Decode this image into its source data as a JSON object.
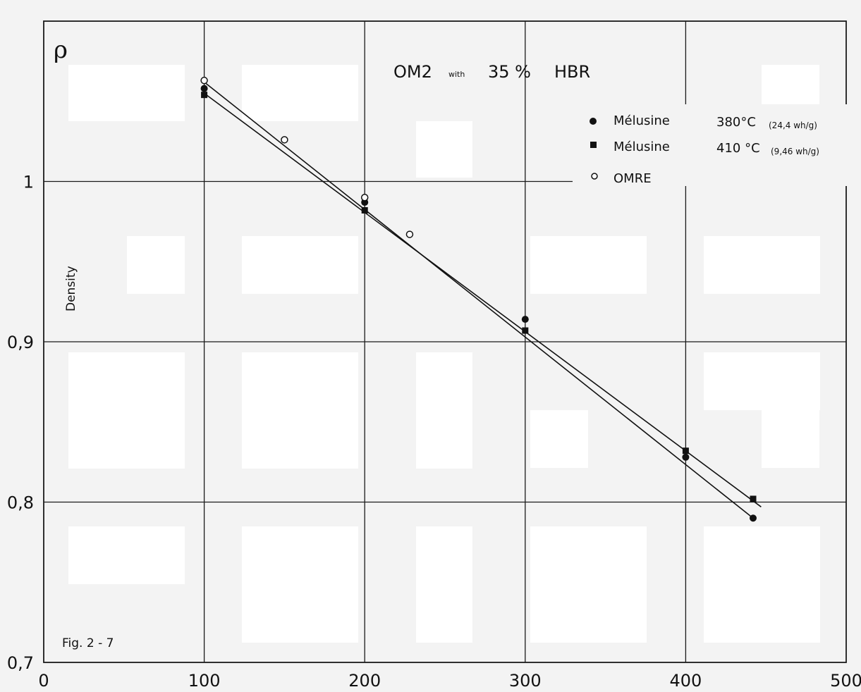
{
  "chart_data": {
    "type": "scatter",
    "title": {
      "main": "OM2",
      "small": "with",
      "pct": "35 %",
      "suffix": "HBR"
    },
    "xlabel": "",
    "ylabel": "Density",
    "y_symbol": "ρ",
    "figure_label": "Fig. 2 - 7",
    "xlim": [
      0,
      500
    ],
    "ylim": [
      0.7,
      1.1
    ],
    "x_ticks": [
      0,
      100,
      200,
      300,
      400,
      500
    ],
    "x_tick_labels": [
      "0",
      "100",
      "200",
      "300",
      "400",
      "500"
    ],
    "y_ticks": [
      0.7,
      0.8,
      0.9,
      1.0
    ],
    "y_tick_labels": [
      "0,7",
      "0,8",
      "0,9",
      "1"
    ],
    "grid": true,
    "legend_position": "top-right",
    "series": [
      {
        "name": "Mélusine",
        "note": "380°C",
        "note_small": "(24,4 wh/g)",
        "marker": "filled-circle",
        "points": [
          [
            100,
            1.058
          ],
          [
            200,
            0.987
          ],
          [
            300,
            0.914
          ],
          [
            400,
            0.828
          ],
          [
            442,
            0.79
          ]
        ]
      },
      {
        "name": "Mélusine",
        "note": "410 °C",
        "note_small": "(9,46 wh/g)",
        "marker": "filled-square",
        "points": [
          [
            100,
            1.054
          ],
          [
            200,
            0.982
          ],
          [
            300,
            0.907
          ],
          [
            400,
            0.832
          ],
          [
            442,
            0.802
          ]
        ]
      },
      {
        "name": "OMRE",
        "note": "",
        "note_small": "",
        "marker": "open-circle",
        "points": [
          [
            100,
            1.063
          ],
          [
            150,
            1.026
          ],
          [
            200,
            0.99
          ],
          [
            228,
            0.967
          ]
        ]
      }
    ],
    "fit_lines": [
      {
        "from": [
          100,
          1.062
        ],
        "to": [
          442,
          0.79
        ]
      },
      {
        "from": [
          100,
          1.055
        ],
        "to": [
          447,
          0.797
        ]
      }
    ]
  }
}
